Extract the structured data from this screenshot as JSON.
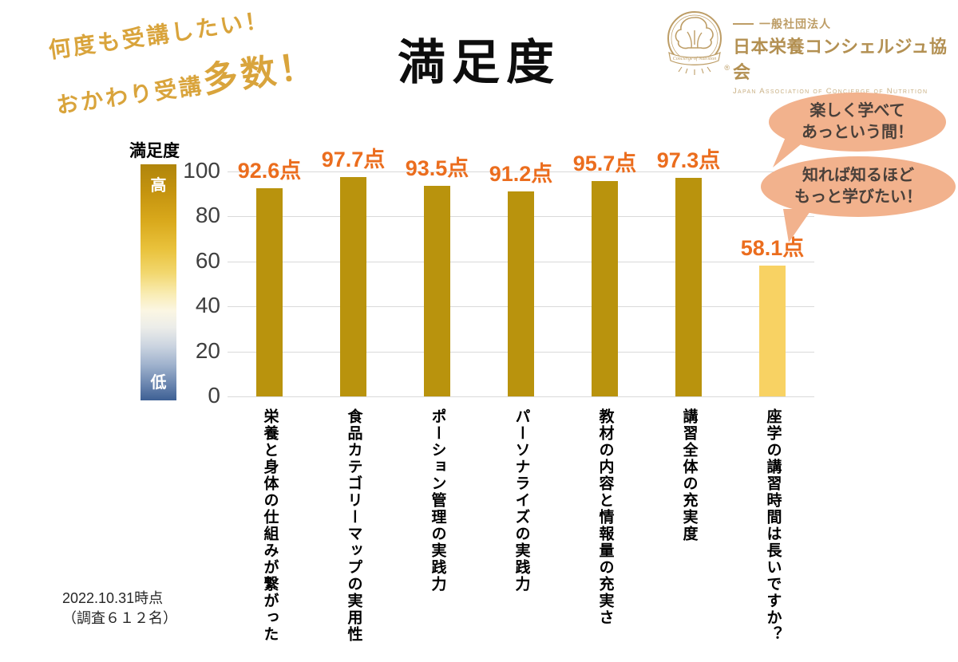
{
  "slide": {
    "title": "満足度",
    "catchphrase": {
      "line1": "何度も受講したい！",
      "line2_small": "おかわり受講",
      "line2_big": "多数！"
    },
    "footer": {
      "line1": "2022.10.31時点",
      "line2": "（調査６１２名）"
    }
  },
  "logo": {
    "org_type": "一般社団法人",
    "org_name": "日本栄養コンシェルジュ協会",
    "org_name_en": "Japan Association of Concierge of Nutrition",
    "emblem_text": "Concierge of Nutrition",
    "registered_mark": "®"
  },
  "legend": {
    "title": "満足度",
    "high_label": "高",
    "low_label": "低"
  },
  "speech_bubbles": [
    {
      "lines": [
        "楽しく学べて",
        "あっという間！"
      ]
    },
    {
      "lines": [
        "知れば知るほど",
        "もっと学びたい！"
      ]
    }
  ],
  "chart_data": {
    "type": "bar",
    "title": "満足度",
    "categories": [
      "栄養と身体の仕組みが繋がった",
      "食品カテゴリーマップの実用性",
      "ポーション管理の実践力",
      "パーソナライズの実践力",
      "教材の内容と情報量の充実さ",
      "講習全体の充実度",
      "座学の講習時間は長いですか？"
    ],
    "values": [
      92.6,
      97.7,
      93.5,
      91.2,
      95.7,
      97.3,
      58.1
    ],
    "value_labels": [
      "92.6点",
      "97.7点",
      "93.5点",
      "91.2点",
      "95.7点",
      "97.3点",
      "58.1点"
    ],
    "yticks": [
      100,
      80,
      60,
      40,
      20,
      0
    ],
    "ylim": [
      0,
      100
    ],
    "grid": true,
    "legend_position": "left",
    "bar_color": "#B9930D",
    "last_bar_color": "#F8D263",
    "label_color": "#EB6D1E",
    "gridline_color": "#D9D9D9"
  }
}
